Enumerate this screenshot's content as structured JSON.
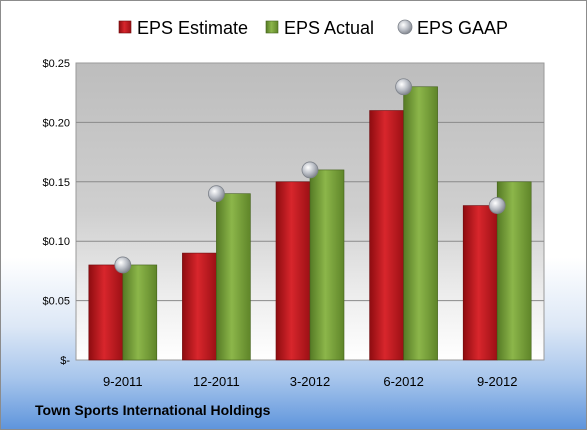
{
  "company_name": "Town Sports International Holdings",
  "colors": {
    "estimate": "#c8161d",
    "actual": "#77a03a",
    "gaap": "#b8bcc4"
  },
  "chart_data": {
    "type": "bar",
    "categories": [
      "9-2011",
      "12-2011",
      "3-2012",
      "6-2012",
      "9-2012"
    ],
    "series": [
      {
        "name": "EPS Estimate",
        "type": "bar",
        "values": [
          0.08,
          0.09,
          0.15,
          0.21,
          0.13
        ]
      },
      {
        "name": "EPS Actual",
        "type": "bar",
        "values": [
          0.08,
          0.14,
          0.16,
          0.23,
          0.15
        ]
      },
      {
        "name": "EPS GAAP",
        "type": "marker",
        "values": [
          0.08,
          0.14,
          0.16,
          0.23,
          0.13
        ]
      }
    ],
    "ylim": [
      0,
      0.25
    ],
    "yticks": [
      0,
      0.05,
      0.1,
      0.15,
      0.2,
      0.25
    ],
    "ytick_labels": [
      "$-",
      "$0.05",
      "$0.10",
      "$0.15",
      "$0.20",
      "$0.25"
    ],
    "legend_position": "top",
    "grid": true
  }
}
